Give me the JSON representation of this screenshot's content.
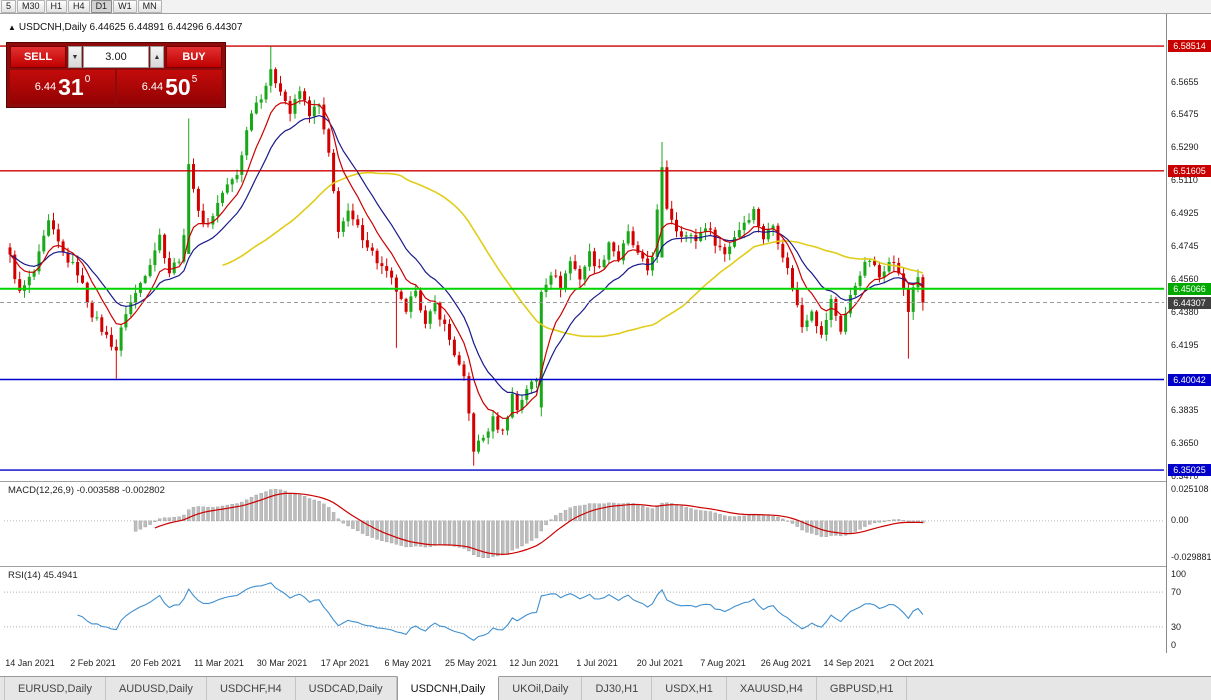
{
  "toolbar": {
    "timeframes": [
      "5",
      "M30",
      "H1",
      "H4",
      "D1",
      "W1",
      "MN"
    ],
    "active_timeframe": "D1"
  },
  "header": {
    "arrow": "▲",
    "symbol": "USDCNH,Daily",
    "ohlc": [
      "6.44625",
      "6.44891",
      "6.44296",
      "6.44307"
    ]
  },
  "trade": {
    "sell_label": "SELL",
    "buy_label": "BUY",
    "volume": "3.00",
    "dec_icon": "▼",
    "inc_icon": "▲",
    "bid": {
      "prefix": "6.44",
      "big": "31",
      "sup": "0"
    },
    "ask": {
      "prefix": "6.44",
      "big": "50",
      "sup": "5"
    }
  },
  "chart": {
    "n": 190,
    "price_axis": [
      "6.5655",
      "6.5475",
      "6.5290",
      "6.5110",
      "6.4925",
      "6.4745",
      "6.4560",
      "6.4380",
      "6.4195",
      "6.4015",
      "6.3835",
      "6.3650",
      "6.3470"
    ],
    "levels": [
      {
        "price": 6.58514,
        "label": "6.58514",
        "line": "#cc0000",
        "tag": "#c80000",
        "dash": false,
        "w": 1.4
      },
      {
        "price": 6.51605,
        "label": "6.51605",
        "line": "#cc0000",
        "tag": "#c80000",
        "dash": false,
        "w": 1.4
      },
      {
        "price": 6.45066,
        "label": "6.45066",
        "line": "#00d400",
        "tag": "#00a800",
        "dash": false,
        "w": 2
      },
      {
        "price": 6.44307,
        "label": "6.44307",
        "line": "#9a9a9a",
        "tag": "#404040",
        "dash": true,
        "w": 1
      },
      {
        "price": 6.40042,
        "label": "6.40042",
        "line": "#0000cc",
        "tag": "#0000c8",
        "dash": false,
        "w": 1.4
      },
      {
        "price": 6.35025,
        "label": "6.35025",
        "line": "#0000cc",
        "tag": "#0000c8",
        "dash": false,
        "w": 1.4
      }
    ],
    "dates": [
      "14 Jan 2021",
      "2 Feb 2021",
      "20 Feb 2021",
      "11 Mar 2021",
      "30 Mar 2021",
      "17 Apr 2021",
      "6 May 2021",
      "25 May 2021",
      "12 Jun 2021",
      "1 Jul 2021",
      "20 Jul 2021",
      "7 Aug 2021",
      "26 Aug 2021",
      "14 Sep 2021",
      "2 Oct 2021"
    ],
    "anchors": [
      [
        0,
        6.468
      ],
      [
        2,
        6.448
      ],
      [
        5,
        6.46
      ],
      [
        8,
        6.487
      ],
      [
        11,
        6.47
      ],
      [
        14,
        6.46
      ],
      [
        17,
        6.437
      ],
      [
        20,
        6.424
      ],
      [
        22,
        6.417
      ],
      [
        24,
        6.438
      ],
      [
        26,
        6.448
      ],
      [
        29,
        6.466
      ],
      [
        31,
        6.48
      ],
      [
        33,
        6.46
      ],
      [
        35,
        6.468
      ],
      [
        36,
        6.478
      ],
      [
        37,
        6.522
      ],
      [
        39,
        6.492
      ],
      [
        41,
        6.486
      ],
      [
        44,
        6.504
      ],
      [
        47,
        6.514
      ],
      [
        50,
        6.55
      ],
      [
        52,
        6.558
      ],
      [
        54,
        6.57
      ],
      [
        56,
        6.562
      ],
      [
        58,
        6.548
      ],
      [
        60,
        6.56
      ],
      [
        62,
        6.548
      ],
      [
        64,
        6.552
      ],
      [
        66,
        6.524
      ],
      [
        68,
        6.484
      ],
      [
        70,
        6.492
      ],
      [
        73,
        6.48
      ],
      [
        76,
        6.466
      ],
      [
        79,
        6.455
      ],
      [
        80,
        6.45
      ],
      [
        82,
        6.436
      ],
      [
        84,
        6.452
      ],
      [
        86,
        6.43
      ],
      [
        88,
        6.442
      ],
      [
        90,
        6.43
      ],
      [
        92,
        6.415
      ],
      [
        94,
        6.4
      ],
      [
        96,
        6.362
      ],
      [
        98,
        6.368
      ],
      [
        100,
        6.378
      ],
      [
        102,
        6.371
      ],
      [
        104,
        6.392
      ],
      [
        105,
        6.384
      ],
      [
        107,
        6.396
      ],
      [
        109,
        6.4
      ],
      [
        110,
        6.45
      ],
      [
        112,
        6.46
      ],
      [
        114,
        6.452
      ],
      [
        116,
        6.466
      ],
      [
        118,
        6.457
      ],
      [
        120,
        6.47
      ],
      [
        122,
        6.461
      ],
      [
        124,
        6.477
      ],
      [
        126,
        6.467
      ],
      [
        128,
        6.481
      ],
      [
        130,
        6.469
      ],
      [
        132,
        6.461
      ],
      [
        133,
        6.47
      ],
      [
        135,
        6.516
      ],
      [
        136,
        6.496
      ],
      [
        138,
        6.484
      ],
      [
        140,
        6.48
      ],
      [
        142,
        6.478
      ],
      [
        144,
        6.486
      ],
      [
        146,
        6.477
      ],
      [
        148,
        6.47
      ],
      [
        150,
        6.48
      ],
      [
        152,
        6.488
      ],
      [
        154,
        6.494
      ],
      [
        156,
        6.479
      ],
      [
        158,
        6.486
      ],
      [
        160,
        6.47
      ],
      [
        162,
        6.452
      ],
      [
        164,
        6.43
      ],
      [
        166,
        6.44
      ],
      [
        168,
        6.424
      ],
      [
        170,
        6.444
      ],
      [
        172,
        6.428
      ],
      [
        174,
        6.446
      ],
      [
        176,
        6.46
      ],
      [
        178,
        6.467
      ],
      [
        180,
        6.457
      ],
      [
        182,
        6.468
      ],
      [
        184,
        6.46
      ],
      [
        186,
        6.438
      ],
      [
        187,
        6.452
      ],
      [
        188,
        6.458
      ],
      [
        189,
        6.443
      ]
    ],
    "forced": [
      {
        "i": 22,
        "low": 6.401
      },
      {
        "i": 37,
        "high": 6.545,
        "open": 6.47
      },
      {
        "i": 54,
        "high": 6.5851
      },
      {
        "i": 80,
        "low": 6.418
      },
      {
        "i": 96,
        "low": 6.3527
      },
      {
        "i": 110,
        "open": 6.385,
        "low": 6.38
      },
      {
        "i": 135,
        "high": 6.532,
        "open": 6.468
      },
      {
        "i": 186,
        "low": 6.412
      },
      {
        "i": 189,
        "close": 6.44307
      }
    ],
    "colors": {
      "up": "#18a818",
      "down": "#d40000",
      "ma_fast": "#cc0000",
      "ma_mid": "#1a1a8c",
      "ma_slow": "#e0cd1a"
    }
  },
  "macd": {
    "label": "MACD(12,26,9) -0.003588 -0.002802",
    "axis": [
      "0.025108",
      "0.00",
      "-0.029881"
    ],
    "hist_color": "#bdbdbd",
    "signal_color": "#cc0000"
  },
  "rsi": {
    "label": "RSI(14) 45.4941",
    "axis": [
      "100",
      "70",
      "30",
      "0"
    ],
    "levels": [
      70,
      30
    ],
    "line_color": "#3e8fd0"
  },
  "tabs": {
    "items": [
      "EURUSD,Daily",
      "AUDUSD,Daily",
      "USDCHF,H4",
      "USDCAD,Daily",
      "USDCNH,Daily",
      "UKOil,Daily",
      "DJ30,H1",
      "USDX,H1",
      "XAUUSD,H4",
      "GBPUSD,H1"
    ],
    "active": "USDCNH,Daily"
  },
  "chart_data": {
    "type": "candlestick",
    "symbol": "USDCNH",
    "timeframe": "Daily",
    "visible_range": {
      "from": "14 Jan 2021",
      "to": "2 Oct 2021"
    },
    "last_ohlc": {
      "open": 6.44625,
      "high": 6.44891,
      "low": 6.44296,
      "close": 6.44307
    },
    "bid": 6.4431,
    "ask": 6.44505,
    "key_levels": [
      6.58514,
      6.51605,
      6.45066,
      6.44307,
      6.40042,
      6.35025
    ],
    "indicators": [
      {
        "name": "MACD",
        "params": [
          12,
          26,
          9
        ],
        "values": [
          -0.003588,
          -0.002802
        ]
      },
      {
        "name": "RSI",
        "params": [
          14
        ],
        "values": [
          45.4941
        ]
      }
    ]
  }
}
